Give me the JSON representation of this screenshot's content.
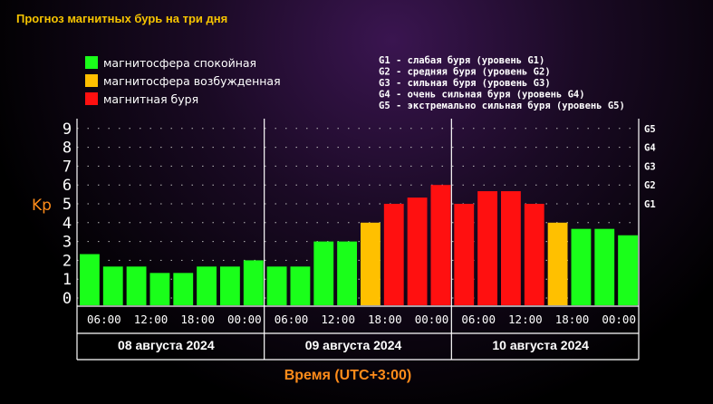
{
  "title": "Прогноз магнитных бурь на три дня",
  "legend": [
    {
      "label": "магнитосфера спокойная",
      "color": "#1aff1a"
    },
    {
      "label": "магнитосфера возбужденная",
      "color": "#ffc000"
    },
    {
      "label": "магнитная буря",
      "color": "#ff1010"
    }
  ],
  "g_levels_legend": [
    "G1 - слабая буря (уровень G1)",
    "G2 - средняя буря (уровень G2)",
    "G3 - сильная буря (уровень G3)",
    "G4 - очень сильная буря (уровень G4)",
    "G5 - экстремально сильная буря (уровень G5)"
  ],
  "chart_data": {
    "type": "bar",
    "ylabel": "Kp",
    "xlabel": "Время (UTC+3:00)",
    "ylim": [
      0,
      9
    ],
    "yticks": [
      "0",
      "1",
      "2",
      "3",
      "4",
      "5",
      "6",
      "7",
      "8",
      "9"
    ],
    "right_axis_ticks": [
      {
        "label": "G1",
        "kp": 5
      },
      {
        "label": "G2",
        "kp": 6
      },
      {
        "label": "G3",
        "kp": 7
      },
      {
        "label": "G4",
        "kp": 8
      },
      {
        "label": "G5",
        "kp": 9
      }
    ],
    "x_tick_labels": [
      "06:00",
      "12:00",
      "18:00",
      "00:00",
      "06:00",
      "12:00",
      "18:00",
      "00:00",
      "06:00",
      "12:00",
      "18:00",
      "00:00"
    ],
    "days": [
      "08 августа 2024",
      "09 августа 2024",
      "10 августа 2024"
    ],
    "values": [
      2.33,
      1.67,
      1.67,
      1.33,
      1.33,
      1.67,
      1.67,
      2.0,
      1.67,
      1.67,
      3.0,
      3.0,
      4.0,
      5.0,
      5.33,
      6.0,
      5.0,
      5.67,
      5.67,
      5.0,
      4.0,
      3.67,
      3.67,
      3.33
    ],
    "colors": [
      "#1aff1a",
      "#1aff1a",
      "#1aff1a",
      "#1aff1a",
      "#1aff1a",
      "#1aff1a",
      "#1aff1a",
      "#1aff1a",
      "#1aff1a",
      "#1aff1a",
      "#1aff1a",
      "#1aff1a",
      "#ffc000",
      "#ff1010",
      "#ff1010",
      "#ff1010",
      "#ff1010",
      "#ff1010",
      "#ff1010",
      "#ff1010",
      "#ffc000",
      "#1aff1a",
      "#1aff1a",
      "#1aff1a"
    ],
    "grid": "dotted",
    "legend_position": "top-left"
  },
  "colors": {
    "title": "#f6c400",
    "axis_label": "#ff8c1a",
    "axis": "#ffffff"
  }
}
